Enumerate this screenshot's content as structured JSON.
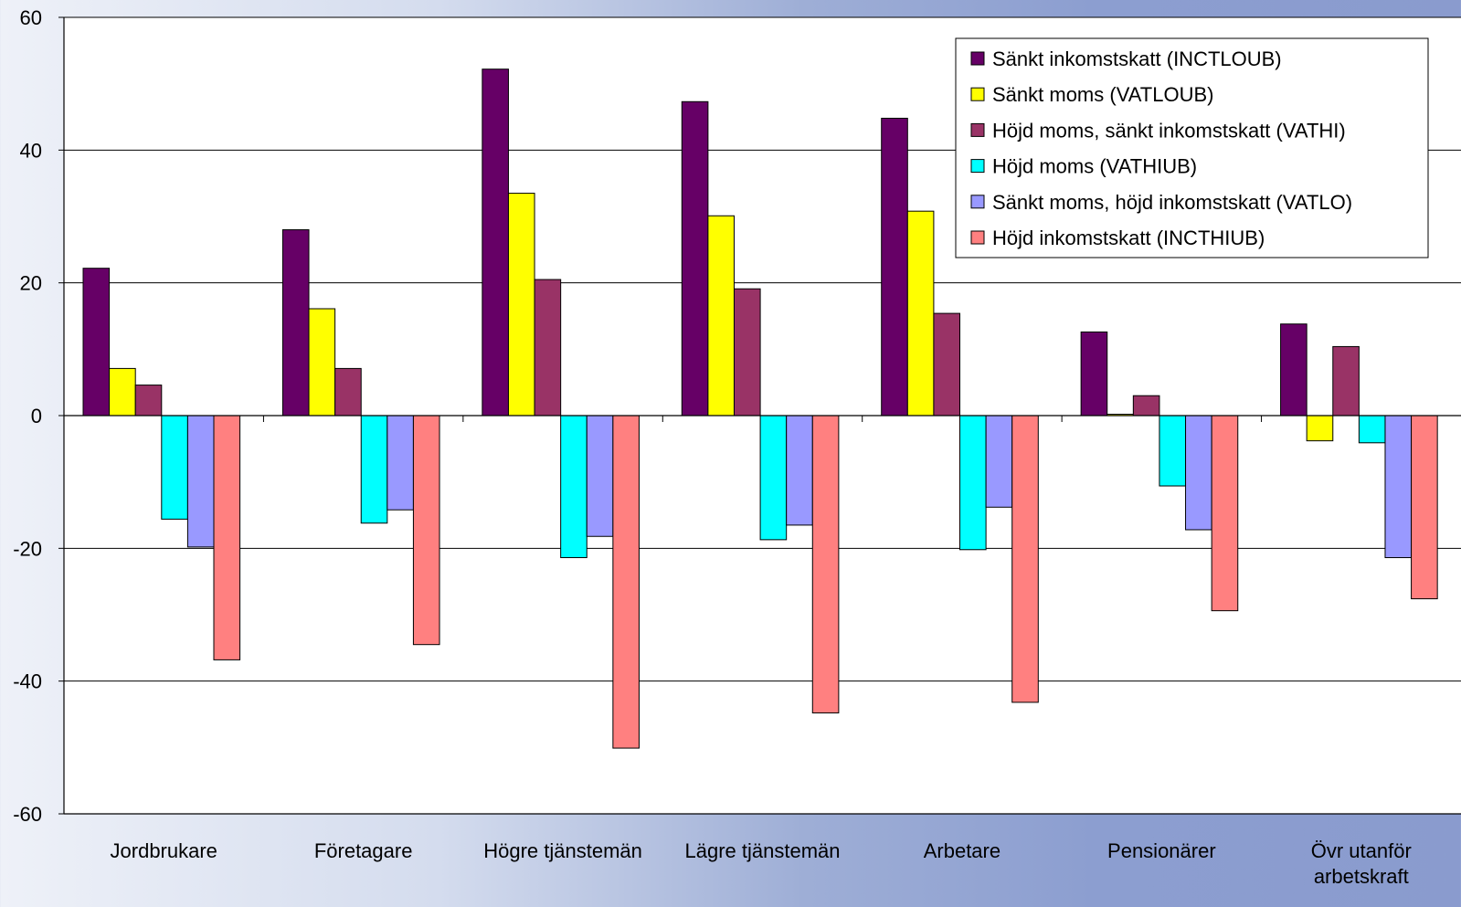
{
  "chart_data": {
    "type": "bar",
    "title": "",
    "xlabel": "",
    "ylabel": "",
    "ylim": [
      -60,
      60
    ],
    "yticks": [
      60,
      40,
      20,
      0,
      -20,
      -40,
      -60
    ],
    "y_tick_labels": [
      "60",
      "40",
      "20",
      "0",
      "-20",
      "-40",
      "-60"
    ],
    "grid": true,
    "legend_position": "top-right",
    "categories": [
      "Jordbrukare",
      "Företagare",
      "Högre tjänstemän",
      "Lägre tjänstemän",
      "Arbetare",
      "Pensionärer",
      "Övr utanför arbetskraft"
    ],
    "category_lines": [
      [
        "Jordbrukare"
      ],
      [
        "Företagare"
      ],
      [
        "Högre tjänstemän"
      ],
      [
        "Lägre tjänstemän"
      ],
      [
        "Arbetare"
      ],
      [
        "Pensionärer"
      ],
      [
        "Övr utanför",
        "arbetskraft"
      ]
    ],
    "series": [
      {
        "name": "Sänkt inkomstskatt (INCTLOUB)",
        "color": "#660066",
        "values": [
          22.2,
          28.0,
          52.2,
          47.3,
          44.8,
          12.6,
          13.8
        ]
      },
      {
        "name": "Sänkt moms (VATLOUB)",
        "color": "#ffff00",
        "values": [
          7.1,
          16.1,
          33.5,
          30.1,
          30.8,
          0.2,
          -3.8
        ]
      },
      {
        "name": "Höjd moms, sänkt inkomstskatt (VATHI)",
        "color": "#993366",
        "values": [
          4.6,
          7.1,
          20.5,
          19.1,
          15.4,
          3.0,
          10.4
        ]
      },
      {
        "name": "Höjd moms (VATHIUB)",
        "color": "#00ffff",
        "values": [
          -15.6,
          -16.2,
          -21.4,
          -18.7,
          -20.2,
          -10.6,
          -4.1
        ]
      },
      {
        "name": "Sänkt moms, höjd inkomstskatt (VATLO)",
        "color": "#9999ff",
        "values": [
          -19.8,
          -14.2,
          -18.2,
          -16.5,
          -13.8,
          -17.2,
          -21.4
        ]
      },
      {
        "name": "Höjd inkomstskatt (INCTHIUB)",
        "color": "#ff8080",
        "values": [
          -36.8,
          -34.5,
          -50.1,
          -44.8,
          -43.2,
          -29.4,
          -27.6
        ]
      }
    ]
  }
}
